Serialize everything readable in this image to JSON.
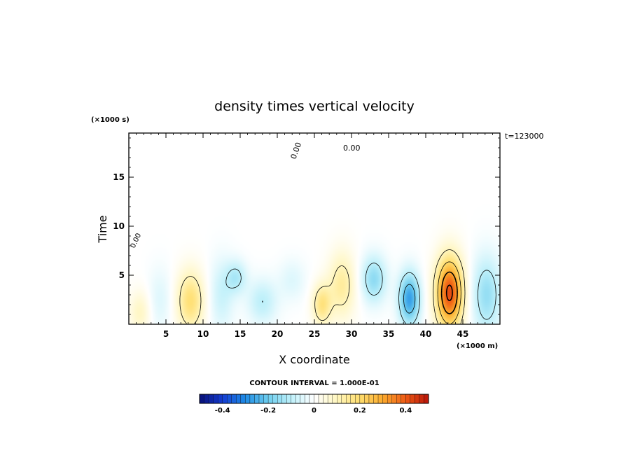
{
  "chart_data": {
    "type": "heatmap",
    "title": "density times vertical velocity",
    "xlabel": "X coordinate",
    "ylabel": "Time",
    "x_unit": "(×1000 m)",
    "y_unit": "(×1000 s)",
    "annotation": "t=123000",
    "contour_interval_label": "CONTOUR INTERVAL = 1.000E-01",
    "contour_labels": [
      "0.00",
      "0.00",
      "0.00"
    ],
    "xlim": [
      0,
      50
    ],
    "ylim": [
      0,
      19.5
    ],
    "x_ticks": [
      5,
      10,
      15,
      20,
      25,
      30,
      35,
      40,
      45
    ],
    "x_tick_labels": [
      "5",
      "10",
      "15",
      "20",
      "25",
      "30",
      "35",
      "40",
      "45"
    ],
    "y_ticks": [
      5,
      10,
      15
    ],
    "y_tick_labels": [
      "5",
      "10",
      "15"
    ],
    "colorbar": {
      "range": [
        -0.5,
        0.5
      ],
      "ticks": [
        -0.4,
        -0.2,
        0,
        0.2,
        0.4
      ],
      "tick_labels": [
        "-0.4",
        "-0.2",
        "0",
        "0.2",
        "0.4"
      ]
    },
    "features": [
      {
        "x": 1.5,
        "y": 1.2,
        "sx": 1.0,
        "sy": 1.6,
        "amp": 0.09
      },
      {
        "x": 4.2,
        "y": 2.5,
        "sx": 1.2,
        "sy": 2.3,
        "amp": -0.05
      },
      {
        "x": 8.3,
        "y": 2.4,
        "sx": 1.3,
        "sy": 2.2,
        "amp": 0.19
      },
      {
        "x": 12.5,
        "y": 3.0,
        "sx": 1.2,
        "sy": 2.6,
        "amp": -0.08
      },
      {
        "x": 14.5,
        "y": 4.8,
        "sx": 1.0,
        "sy": 1.2,
        "amp": -0.11
      },
      {
        "x": 18.0,
        "y": 2.3,
        "sx": 1.4,
        "sy": 1.6,
        "amp": -0.1
      },
      {
        "x": 22.0,
        "y": 4.5,
        "sx": 1.3,
        "sy": 1.5,
        "amp": -0.05
      },
      {
        "x": 26.0,
        "y": 2.0,
        "sx": 0.9,
        "sy": 1.5,
        "amp": 0.17
      },
      {
        "x": 28.7,
        "y": 4.0,
        "sx": 1.3,
        "sy": 2.4,
        "amp": 0.14
      },
      {
        "x": 33.0,
        "y": 4.6,
        "sx": 1.2,
        "sy": 1.7,
        "amp": -0.16
      },
      {
        "x": 37.8,
        "y": 2.6,
        "sx": 1.0,
        "sy": 1.9,
        "amp": -0.27
      },
      {
        "x": 43.2,
        "y": 3.2,
        "sx": 1.3,
        "sy": 2.6,
        "amp": 0.42
      },
      {
        "x": 48.2,
        "y": 3.0,
        "sx": 1.4,
        "sy": 2.8,
        "amp": -0.15
      }
    ]
  }
}
